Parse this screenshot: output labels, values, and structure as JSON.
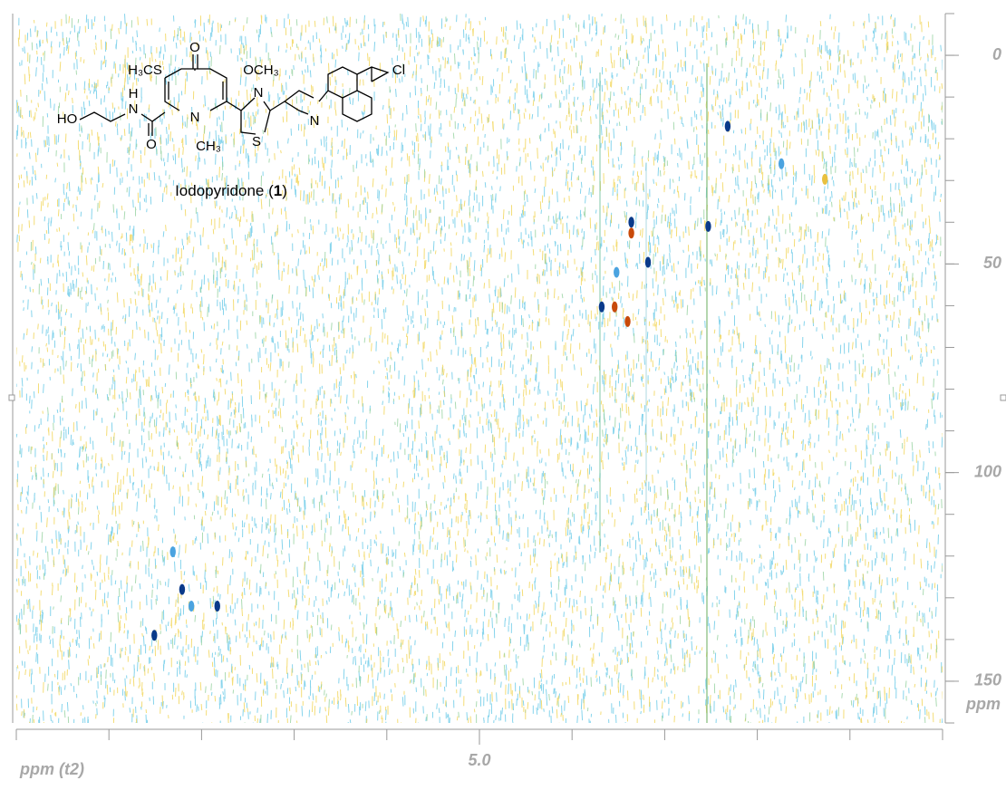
{
  "chart_data": {
    "type": "scatter",
    "x_label": "ppm (t2)",
    "y_label": "ppm",
    "xlim": [
      10,
      0
    ],
    "ylim": [
      -10,
      160
    ],
    "xticks": [
      {
        "value": 5,
        "label": "5.0"
      }
    ],
    "x_minor_ticks": [
      10,
      9,
      8,
      7,
      6,
      5,
      4,
      3,
      2,
      1,
      0
    ],
    "yticks": [
      0,
      50,
      100,
      150
    ],
    "y_minor_ticks": [
      -10,
      0,
      10,
      20,
      30,
      40,
      50,
      60,
      70,
      80,
      90,
      100,
      110,
      120,
      130,
      140,
      150,
      160
    ],
    "series": [
      {
        "color": "#0a3a8a",
        "x": [
          2.32,
          2.53,
          3.36,
          3.18,
          3.68,
          8.21,
          7.83,
          8.51
        ],
        "values": [
          17,
          41,
          40,
          49.6,
          60.3,
          128,
          132,
          139
        ]
      },
      {
        "color": "#4aa3e0",
        "x": [
          3.52,
          8.31,
          8.11,
          1.74
        ],
        "values": [
          52,
          119,
          132,
          26
        ]
      },
      {
        "color": "#c84a0a",
        "x": [
          3.36,
          3.54,
          3.4
        ],
        "values": [
          42.6,
          60.3,
          63.8
        ]
      },
      {
        "color": "#e8c040",
        "x": [
          1.27
        ],
        "values": [
          29.7
        ]
      }
    ]
  },
  "structure": {
    "atoms": [
      "H₃CS",
      "O",
      "OCH₃",
      "H",
      "N",
      "HO",
      "O",
      "N",
      "CH₃",
      "N",
      "S",
      "N",
      "Cl"
    ],
    "caption": [
      "Iodopyridone (",
      "1",
      ")"
    ]
  }
}
